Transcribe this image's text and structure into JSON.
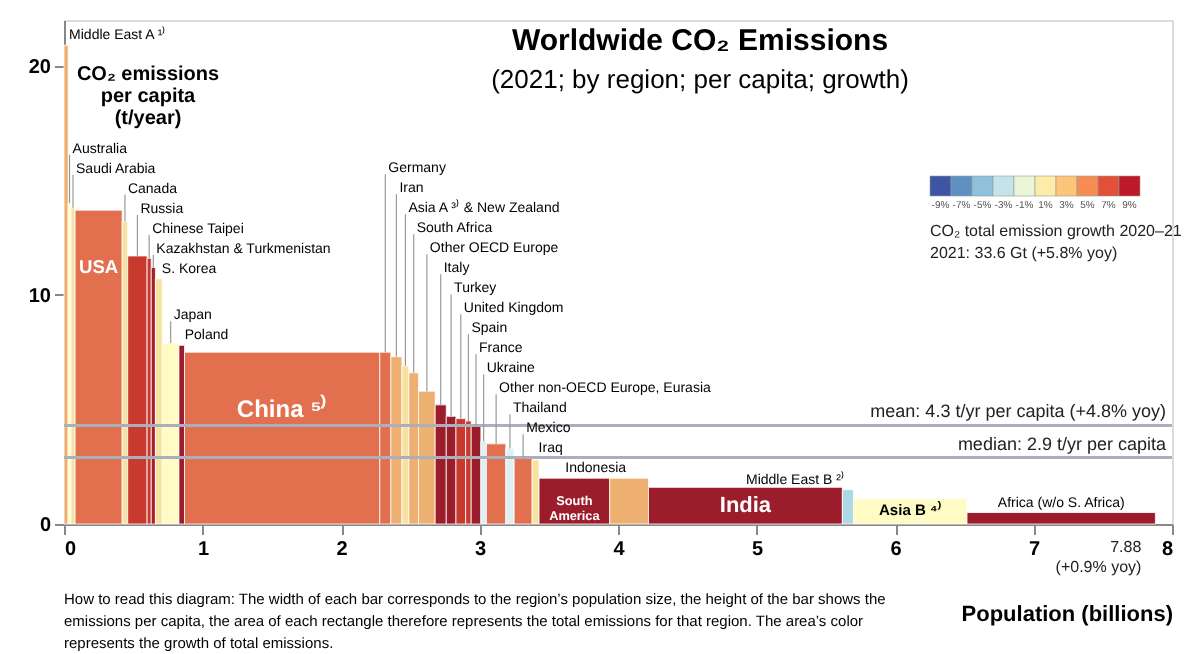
{
  "chart_data": {
    "type": "histogram",
    "title": "Worldwide CO₂ Emissions",
    "subtitle": "(2021; by region; per capita; growth)",
    "xlabel": "Population (billions)",
    "ylabel": "CO₂ emissions per capita (t/year)",
    "clabel": "CO₂ total emission growth 2020–21",
    "bins": [
      0,
      0.03,
      0.05,
      0.08,
      0.42,
      0.46,
      0.6,
      0.63,
      0.66,
      0.71,
      0.83,
      0.87,
      2.28,
      2.36,
      2.44,
      2.49,
      2.56,
      2.68,
      2.76,
      2.83,
      2.9,
      2.94,
      3.01,
      3.05,
      3.19,
      3.25,
      3.38,
      3.43,
      3.94,
      4.22,
      5.62,
      5.7,
      6.52,
      7.88
    ],
    "values": [
      20.9,
      14.0,
      13.8,
      13.7,
      13.2,
      11.7,
      11.6,
      11.2,
      10.7,
      7.9,
      7.8,
      7.5,
      7.5,
      7.3,
      6.9,
      6.6,
      5.8,
      5.2,
      4.7,
      4.6,
      4.5,
      4.3,
      3.6,
      3.5,
      3.3,
      2.9,
      2.8,
      2.0,
      2.0,
      1.6,
      1.5,
      1.1,
      0.5
    ],
    "colors": [
      "#eeb070",
      "#fffbc4",
      "#f7e3a0",
      "#e2704e",
      "#f7e3a0",
      "#c83a2e",
      "#c83a2e",
      "#a51e2a",
      "#f7e3a0",
      "#fffbc4",
      "#9b1c2a",
      "#e2704e",
      "#e2704e",
      "#eeb070",
      "#f7e3a0",
      "#eeb070",
      "#eeb070",
      "#9b1c2a",
      "#9b1c2a",
      "#c83a2e",
      "#c83a2e",
      "#9b1c2a",
      "#dff0f5",
      "#e2704e",
      "#dff0f5",
      "#e2704e",
      "#f7e3a0",
      "#9b1c2a",
      "#eeb070",
      "#9b1c2a",
      "#add8e6",
      "#fffbc4",
      "#9b1c2a"
    ],
    "xlim": [
      0,
      8
    ],
    "xticks": [
      0,
      1,
      2,
      3,
      4,
      5,
      6,
      7,
      8
    ],
    "ylim": [
      0,
      22
    ],
    "yticks": [
      0,
      10,
      20
    ],
    "ref_lines": [
      {
        "axis": "y",
        "value": 4.3,
        "label": "mean: 4.3 t/yr per capita (+4.8% yoy)",
        "color": "#a9afbb"
      },
      {
        "axis": "y",
        "value": 2.9,
        "label": "median: 2.9 t/yr per capita",
        "color": "#a9afbb"
      }
    ],
    "annotations": [
      "-9%",
      "-7%",
      "-5%",
      "-3%",
      "-1%",
      "1%",
      "3%",
      "5%",
      "7%",
      "9%",
      "2021: 33.6 Gt (+5.8% yoy)",
      "How to read this diagram: The width of each bar corresponds to the region’s population size, the height of the bar shows the emissions per capita, the area of each rectangle therefore represents the total emissions for that region. The area’s color represents the growth of total emissions.",
      {
        "text": "Middle East A ¹⁾",
        "x": 0.015,
        "y": 20.9
      },
      {
        "text": "Australia",
        "x": 0.04,
        "y": 14.0
      },
      {
        "text": "Saudi Arabia",
        "x": 0.065,
        "y": 13.8
      },
      {
        "text": "USA",
        "x": 0.25,
        "y": 13.7
      },
      {
        "text": "Canada",
        "x": 0.44,
        "y": 13.2
      },
      {
        "text": "Russia",
        "x": 0.53,
        "y": 11.7
      },
      {
        "text": "Chinese Taipei",
        "x": 0.615,
        "y": 11.6
      },
      {
        "text": "Kazakhstan & Turkmenistan",
        "x": 0.645,
        "y": 11.2
      },
      {
        "text": "S. Korea",
        "x": 0.685,
        "y": 10.7
      },
      {
        "text": "Japan",
        "x": 0.77,
        "y": 7.9
      },
      {
        "text": "Poland",
        "x": 0.85,
        "y": 7.8
      },
      {
        "text": "China ⁵⁾",
        "x": 1.575,
        "y": 7.5
      },
      {
        "text": "Germany",
        "x": 2.32,
        "y": 7.5
      },
      {
        "text": "Iran",
        "x": 2.4,
        "y": 7.3
      },
      {
        "text": "Asia A ³⁾ & New Zealand",
        "x": 2.465,
        "y": 6.9
      },
      {
        "text": "South Africa",
        "x": 2.525,
        "y": 6.6
      },
      {
        "text": "Other OECD Europe",
        "x": 2.62,
        "y": 5.8
      },
      {
        "text": "Italy",
        "x": 2.72,
        "y": 5.2
      },
      {
        "text": "Turkey",
        "x": 2.795,
        "y": 4.7
      },
      {
        "text": "United Kingdom",
        "x": 2.865,
        "y": 4.6
      },
      {
        "text": "Spain",
        "x": 2.92,
        "y": 4.5
      },
      {
        "text": "France",
        "x": 2.975,
        "y": 4.3
      },
      {
        "text": "Ukraine",
        "x": 3.03,
        "y": 3.6
      },
      {
        "text": "Other non-OECD Europe, Eurasia",
        "x": 3.12,
        "y": 3.5
      },
      {
        "text": "Thailand",
        "x": 3.22,
        "y": 3.3
      },
      {
        "text": "Mexico",
        "x": 3.315,
        "y": 2.9
      },
      {
        "text": "Iraq",
        "x": 3.405,
        "y": 2.8
      },
      {
        "text": "South America",
        "x": 3.685,
        "y": 2.0
      },
      {
        "text": "Indonesia",
        "x": 4.08,
        "y": 2.0
      },
      {
        "text": "India",
        "x": 4.92,
        "y": 1.6
      },
      {
        "text": "Middle East B ²⁾",
        "x": 5.66,
        "y": 1.5
      },
      {
        "text": "Asia B ⁴⁾",
        "x": 6.11,
        "y": 1.1
      },
      {
        "text": "Africa (w/o S. Africa)",
        "x": 7.2,
        "y": 0.5
      },
      {
        "text": "7.88 (+0.9% yoy)",
        "x": 7.88,
        "y": 0
      }
    ]
  }
}
